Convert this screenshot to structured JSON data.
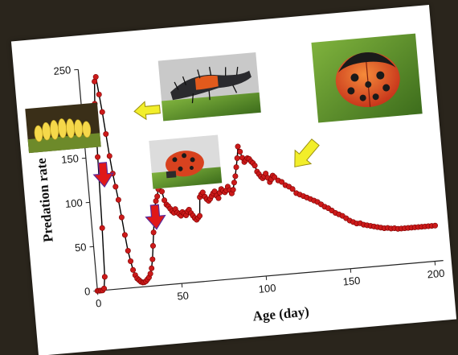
{
  "chart_data": {
    "type": "line",
    "xlabel": "Age (day)",
    "ylabel": "Predation rate",
    "xlim": [
      0,
      205
    ],
    "ylim": [
      0,
      250
    ],
    "x_ticks": [
      "0",
      "50",
      "100",
      "150",
      "200"
    ],
    "y_ticks": [
      "0",
      "50",
      "100",
      "150",
      "200",
      "250"
    ],
    "colors": {
      "line": "#000000",
      "marker": "#cc1a1a",
      "marker_edge": "#7a0000",
      "down_arrow": "#e01818",
      "stage_arrow": "#f2ee2a"
    },
    "series": [
      {
        "points": [
          [
            0,
            0
          ],
          [
            1,
            0
          ],
          [
            2,
            0
          ],
          [
            3,
            0
          ],
          [
            4,
            2
          ],
          [
            5,
            15
          ],
          [
            6,
            70
          ],
          [
            7,
            150
          ],
          [
            8,
            210
          ],
          [
            9,
            235
          ],
          [
            10,
            240
          ],
          [
            11,
            220
          ],
          [
            12,
            200
          ],
          [
            13,
            175
          ],
          [
            14,
            150
          ],
          [
            15,
            130
          ],
          [
            16,
            115
          ],
          [
            17,
            100
          ],
          [
            18,
            80
          ],
          [
            19,
            60
          ],
          [
            20,
            42
          ],
          [
            21,
            30
          ],
          [
            22,
            20
          ],
          [
            23,
            14
          ],
          [
            24,
            10
          ],
          [
            25,
            8
          ],
          [
            26,
            6
          ],
          [
            27,
            5
          ],
          [
            28,
            5
          ],
          [
            29,
            6
          ],
          [
            30,
            8
          ],
          [
            31,
            10
          ],
          [
            32,
            14
          ],
          [
            33,
            20
          ],
          [
            34,
            30
          ],
          [
            35,
            45
          ],
          [
            36,
            60
          ],
          [
            37,
            75
          ],
          [
            38,
            88
          ],
          [
            39,
            95
          ],
          [
            40,
            100
          ],
          [
            41,
            108
          ],
          [
            42,
            112
          ],
          [
            43,
            105
          ],
          [
            44,
            95
          ],
          [
            45,
            90
          ],
          [
            46,
            88
          ],
          [
            47,
            85
          ],
          [
            48,
            82
          ],
          [
            49,
            80
          ],
          [
            50,
            84
          ],
          [
            51,
            80
          ],
          [
            52,
            78
          ],
          [
            53,
            76
          ],
          [
            54,
            80
          ],
          [
            55,
            78
          ],
          [
            56,
            76
          ],
          [
            57,
            80
          ],
          [
            58,
            82
          ],
          [
            59,
            78
          ],
          [
            60,
            75
          ],
          [
            61,
            72
          ],
          [
            62,
            70
          ],
          [
            63,
            72
          ],
          [
            64,
            74
          ],
          [
            65,
            95
          ],
          [
            66,
            98
          ],
          [
            67,
            100
          ],
          [
            68,
            95
          ],
          [
            69,
            92
          ],
          [
            70,
            90
          ],
          [
            71,
            92
          ],
          [
            72,
            95
          ],
          [
            73,
            98
          ],
          [
            74,
            100
          ],
          [
            75,
            95
          ],
          [
            76,
            92
          ],
          [
            77,
            98
          ],
          [
            78,
            102
          ],
          [
            79,
            100
          ],
          [
            80,
            98
          ],
          [
            81,
            100
          ],
          [
            82,
            104
          ],
          [
            83,
            100
          ],
          [
            84,
            96
          ],
          [
            85,
            100
          ],
          [
            86,
            108
          ],
          [
            87,
            115
          ],
          [
            88,
            125
          ],
          [
            89,
            135
          ],
          [
            90,
            148
          ],
          [
            91,
            142
          ],
          [
            92,
            135
          ],
          [
            93,
            130
          ],
          [
            94,
            132
          ],
          [
            95,
            134
          ],
          [
            96,
            133
          ],
          [
            97,
            130
          ],
          [
            98,
            128
          ],
          [
            99,
            125
          ],
          [
            100,
            118
          ],
          [
            101,
            115
          ],
          [
            102,
            112
          ],
          [
            103,
            110
          ],
          [
            104,
            112
          ],
          [
            105,
            115
          ],
          [
            106,
            110
          ],
          [
            107,
            105
          ],
          [
            108,
            108
          ],
          [
            109,
            112
          ],
          [
            110,
            110
          ],
          [
            112,
            106
          ],
          [
            114,
            104
          ],
          [
            116,
            100
          ],
          [
            118,
            98
          ],
          [
            120,
            95
          ],
          [
            122,
            90
          ],
          [
            124,
            88
          ],
          [
            126,
            86
          ],
          [
            128,
            84
          ],
          [
            130,
            82
          ],
          [
            132,
            80
          ],
          [
            134,
            78
          ],
          [
            136,
            75
          ],
          [
            138,
            72
          ],
          [
            140,
            70
          ],
          [
            142,
            67
          ],
          [
            144,
            64
          ],
          [
            146,
            62
          ],
          [
            148,
            60
          ],
          [
            150,
            57
          ],
          [
            152,
            54
          ],
          [
            154,
            52
          ],
          [
            156,
            50
          ],
          [
            158,
            50
          ],
          [
            160,
            48
          ],
          [
            162,
            47
          ],
          [
            164,
            46
          ],
          [
            166,
            45
          ],
          [
            168,
            44
          ],
          [
            170,
            43
          ],
          [
            172,
            42
          ],
          [
            174,
            42
          ],
          [
            176,
            41
          ],
          [
            178,
            41
          ],
          [
            180,
            40
          ],
          [
            182,
            40
          ],
          [
            184,
            40
          ],
          [
            186,
            40
          ],
          [
            188,
            40
          ],
          [
            190,
            40
          ],
          [
            192,
            40
          ],
          [
            194,
            40
          ],
          [
            196,
            40
          ],
          [
            198,
            40
          ],
          [
            200,
            40
          ],
          [
            202,
            40
          ]
        ]
      }
    ]
  }
}
